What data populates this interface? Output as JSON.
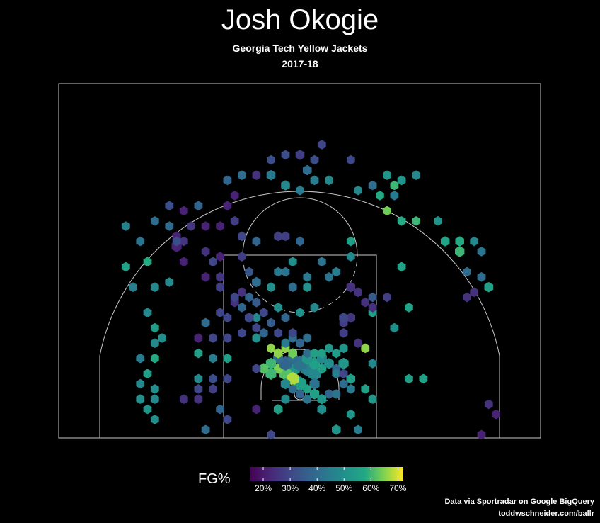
{
  "colors": {
    "background": "#000000",
    "court_lines": "#c8c8c8"
  },
  "chart_data": {
    "type": "hexbin",
    "title": "Josh Okogie",
    "subtitle": "Georgia Tech Yellow Jackets",
    "season": "2017-18",
    "legend": {
      "title": "FG%",
      "placement": "bottom-center",
      "range": [
        0.15,
        0.72
      ],
      "ticks": [
        "20%",
        "30%",
        "40%",
        "50%",
        "60%",
        "70%"
      ],
      "tick_values": [
        0.2,
        0.3,
        0.4,
        0.5,
        0.6,
        0.7
      ],
      "colormap": "viridis"
    },
    "shot_units": "feet from basket (x lateral, y toward baseline)",
    "hexes": [
      [
        0.0,
        1.4,
        0.55,
        0.28
      ],
      [
        -1.0,
        2.1,
        0.68,
        0.24
      ],
      [
        -1.0,
        3.5,
        0.52,
        0.32
      ],
      [
        1.0,
        3.5,
        0.46,
        0.3
      ],
      [
        -2.0,
        2.8,
        0.62,
        0.24
      ],
      [
        2.0,
        2.8,
        0.48,
        0.26
      ],
      [
        -3.0,
        3.5,
        0.65,
        0.15
      ],
      [
        3.0,
        3.5,
        0.55,
        0.15
      ],
      [
        -2.0,
        4.2,
        0.38,
        0.26
      ],
      [
        0.0,
        4.2,
        0.42,
        0.3
      ],
      [
        2.0,
        4.2,
        0.55,
        0.2
      ],
      [
        -3.0,
        4.9,
        0.4,
        0.18
      ],
      [
        -1.0,
        4.9,
        0.4,
        0.18
      ],
      [
        1.0,
        4.9,
        0.53,
        0.2
      ],
      [
        3.0,
        4.9,
        0.48,
        0.18
      ],
      [
        -1.0,
        2.1,
        0.68,
        0.24
      ],
      [
        -4.0,
        2.8,
        0.6,
        0.2
      ],
      [
        -2.0,
        1.4,
        0.48,
        0.16
      ],
      [
        2.0,
        1.4,
        0.42,
        0.18
      ],
      [
        -4.0,
        4.2,
        0.6,
        0.18
      ],
      [
        -5.0,
        3.5,
        0.62,
        0.16
      ],
      [
        4.0,
        4.2,
        0.5,
        0.16
      ],
      [
        5.0,
        3.5,
        0.38,
        0.12
      ],
      [
        6.0,
        4.2,
        0.52,
        0.18
      ],
      [
        5.0,
        2.8,
        0.45,
        0.12
      ],
      [
        6.0,
        2.8,
        0.3,
        0.12
      ],
      [
        7.0,
        2.1,
        0.55,
        0.14
      ],
      [
        0.0,
        0.0,
        0.38,
        0.12
      ],
      [
        2.0,
        0.0,
        0.55,
        0.16
      ],
      [
        1.0,
        -0.7,
        0.42,
        0.12
      ],
      [
        4.0,
        0.0,
        0.38,
        0.12
      ],
      [
        -1.0,
        0.7,
        0.4,
        0.12
      ],
      [
        -3.0,
        5.6,
        0.66,
        0.14
      ],
      [
        -1.0,
        5.6,
        0.64,
        0.14
      ],
      [
        1.0,
        5.6,
        0.4,
        0.12
      ],
      [
        3.0,
        5.6,
        0.55,
        0.12
      ],
      [
        5.0,
        5.6,
        0.54,
        0.12
      ],
      [
        -4.0,
        6.3,
        0.66,
        0.12
      ],
      [
        -2.0,
        6.3,
        0.66,
        0.12
      ],
      [
        4.0,
        6.3,
        0.52,
        0.12
      ],
      [
        -2.0,
        7.0,
        0.44,
        0.12
      ],
      [
        0.0,
        7.0,
        0.38,
        0.12
      ],
      [
        -1.0,
        7.7,
        0.4,
        0.12
      ],
      [
        1.0,
        7.7,
        0.4,
        0.12
      ],
      [
        -6.0,
        7.7,
        0.5,
        0.12
      ],
      [
        -5.0,
        8.4,
        0.38,
        0.12
      ],
      [
        -3.0,
        8.4,
        0.3,
        0.12
      ],
      [
        -4.0,
        9.8,
        0.36,
        0.12
      ],
      [
        -1.0,
        8.4,
        0.3,
        0.12
      ],
      [
        6.0,
        8.4,
        0.28,
        0.12
      ],
      [
        6.0,
        9.8,
        0.28,
        0.12
      ],
      [
        -2.0,
        10.5,
        0.38,
        0.12
      ],
      [
        -6.0,
        10.5,
        0.48,
        0.12
      ],
      [
        0.0,
        11.2,
        0.5,
        0.12
      ],
      [
        -3.0,
        11.9,
        0.5,
        0.12
      ],
      [
        2.0,
        11.9,
        0.48,
        0.12
      ],
      [
        -7.0,
        10.5,
        0.3,
        0.14
      ],
      [
        7.0,
        10.5,
        0.26,
        0.14
      ],
      [
        6.0,
        10.5,
        0.3,
        0.14
      ],
      [
        10.0,
        11.2,
        0.55,
        0.12
      ],
      [
        -11.0,
        11.2,
        0.3,
        0.12
      ],
      [
        -9.0,
        12.6,
        0.25,
        0.12
      ],
      [
        -8.0,
        14.0,
        0.25,
        0.12
      ],
      [
        -11.0,
        16.1,
        0.26,
        0.12
      ],
      [
        -12.0,
        7.7,
        0.3,
        0.12
      ],
      [
        -14.0,
        7.7,
        0.22,
        0.12
      ],
      [
        -13.0,
        9.8,
        0.4,
        0.12
      ],
      [
        -14.0,
        5.6,
        0.55,
        0.12
      ],
      [
        -12.0,
        4.9,
        0.45,
        0.12
      ],
      [
        -10.0,
        4.9,
        0.55,
        0.12
      ],
      [
        -12.0,
        2.1,
        0.32,
        0.12
      ],
      [
        -10.0,
        2.1,
        0.3,
        0.12
      ],
      [
        -14.0,
        0.7,
        0.3,
        0.12
      ],
      [
        -20.0,
        4.9,
        0.58,
        0.12
      ],
      [
        -21.0,
        2.8,
        0.55,
        0.12
      ],
      [
        -22.0,
        1.4,
        0.48,
        0.12
      ],
      [
        -20.0,
        0.7,
        0.5,
        0.12
      ],
      [
        -22.0,
        -0.7,
        0.5,
        0.12
      ],
      [
        -20.0,
        -0.7,
        0.48,
        0.12
      ],
      [
        -21.0,
        -2.1,
        0.52,
        0.12
      ],
      [
        -22.0,
        4.9,
        0.45,
        0.12
      ],
      [
        -20.0,
        9.1,
        0.54,
        0.12
      ],
      [
        -20.0,
        7.0,
        0.48,
        0.12
      ],
      [
        -21.0,
        11.2,
        0.48,
        0.12
      ],
      [
        -20.0,
        14.7,
        0.48,
        0.12
      ],
      [
        -24.0,
        17.5,
        0.56,
        0.12
      ],
      [
        -21.0,
        18.2,
        0.58,
        0.12
      ],
      [
        -22.0,
        21.0,
        0.42,
        0.12
      ],
      [
        -24.0,
        23.1,
        0.46,
        0.12
      ],
      [
        -20.0,
        23.8,
        0.4,
        0.12
      ],
      [
        -18.0,
        23.1,
        0.4,
        0.12
      ],
      [
        -18.0,
        25.9,
        0.32,
        0.12
      ],
      [
        -16.0,
        25.2,
        0.22,
        0.12
      ],
      [
        -14.0,
        25.9,
        0.38,
        0.12
      ],
      [
        -13.0,
        23.1,
        0.22,
        0.12
      ],
      [
        -17.0,
        21.7,
        0.22,
        0.12
      ],
      [
        -15.0,
        23.1,
        0.26,
        0.12
      ],
      [
        -16.0,
        21.0,
        0.26,
        0.12
      ],
      [
        -17.0,
        20.3,
        0.22,
        0.18
      ],
      [
        -13.0,
        19.6,
        0.25,
        0.12
      ],
      [
        -11.0,
        18.9,
        0.22,
        0.12
      ],
      [
        -11.0,
        23.1,
        0.22,
        0.12
      ],
      [
        -9.0,
        23.8,
        0.28,
        0.12
      ],
      [
        -10.0,
        25.9,
        0.22,
        0.12
      ],
      [
        -9.0,
        27.3,
        0.22,
        0.12
      ],
      [
        -10.0,
        29.4,
        0.38,
        0.12
      ],
      [
        -8.0,
        30.1,
        0.4,
        0.12
      ],
      [
        -6.0,
        30.1,
        0.25,
        0.12
      ],
      [
        -4.0,
        30.1,
        0.44,
        0.14
      ],
      [
        -2.0,
        28.7,
        0.48,
        0.14
      ],
      [
        0.0,
        28.0,
        0.44,
        0.12
      ],
      [
        1.0,
        30.8,
        0.4,
        0.14
      ],
      [
        2.0,
        29.4,
        0.45,
        0.12
      ],
      [
        4.0,
        29.4,
        0.48,
        0.12
      ],
      [
        -2.0,
        32.9,
        0.32,
        0.12
      ],
      [
        0.0,
        32.9,
        0.28,
        0.14
      ],
      [
        -4.0,
        32.2,
        0.32,
        0.12
      ],
      [
        2.0,
        32.2,
        0.32,
        0.12
      ],
      [
        3.0,
        34.3,
        0.3,
        0.12
      ],
      [
        7.0,
        32.2,
        0.3,
        0.12
      ],
      [
        10.0,
        28.7,
        0.4,
        0.12
      ],
      [
        8.0,
        28.0,
        0.48,
        0.12
      ],
      [
        11.0,
        27.3,
        0.58,
        0.12
      ],
      [
        13.0,
        28.7,
        0.6,
        0.12
      ],
      [
        12.0,
        30.1,
        0.52,
        0.12
      ],
      [
        14.0,
        29.4,
        0.52,
        0.12
      ],
      [
        16.0,
        30.1,
        0.48,
        0.12
      ],
      [
        13.0,
        27.3,
        0.44,
        0.12
      ],
      [
        12.0,
        25.2,
        0.64,
        0.12
      ],
      [
        14.0,
        23.8,
        0.58,
        0.12
      ],
      [
        16.0,
        23.8,
        0.6,
        0.12
      ],
      [
        19.0,
        23.8,
        0.52,
        0.12
      ],
      [
        20.0,
        21.0,
        0.56,
        0.14
      ],
      [
        22.0,
        21.0,
        0.58,
        0.14
      ],
      [
        24.0,
        21.0,
        0.48,
        0.12
      ],
      [
        22.0,
        19.6,
        0.6,
        0.16
      ],
      [
        25.0,
        19.6,
        0.42,
        0.12
      ],
      [
        23.0,
        16.8,
        0.4,
        0.12
      ],
      [
        25.0,
        16.1,
        0.4,
        0.12
      ],
      [
        26.0,
        14.7,
        0.55,
        0.14
      ],
      [
        24.0,
        14.0,
        0.25,
        0.12
      ],
      [
        23.0,
        13.3,
        0.25,
        0.12
      ],
      [
        14.0,
        17.5,
        0.56,
        0.12
      ],
      [
        12.0,
        13.3,
        0.28,
        0.12
      ],
      [
        15.0,
        11.9,
        0.56,
        0.12
      ],
      [
        13.0,
        9.1,
        0.5,
        0.12
      ],
      [
        10.0,
        13.3,
        0.35,
        0.12
      ],
      [
        8.0,
        14.0,
        0.25,
        0.12
      ],
      [
        9.0,
        12.6,
        0.25,
        0.12
      ],
      [
        10.0,
        11.9,
        0.25,
        0.12
      ],
      [
        7.0,
        14.7,
        0.25,
        0.14
      ],
      [
        7.0,
        18.9,
        0.48,
        0.12
      ],
      [
        5.0,
        16.8,
        0.45,
        0.12
      ],
      [
        3.0,
        18.2,
        0.42,
        0.12
      ],
      [
        4.0,
        16.1,
        0.42,
        0.12
      ],
      [
        1.0,
        16.1,
        0.44,
        0.12
      ],
      [
        -1.0,
        14.7,
        0.4,
        0.12
      ],
      [
        1.0,
        14.7,
        0.5,
        0.12
      ],
      [
        -4.0,
        14.7,
        0.5,
        0.12
      ],
      [
        -3.0,
        16.8,
        0.44,
        0.12
      ],
      [
        -1.0,
        18.2,
        0.5,
        0.12
      ],
      [
        -2.0,
        16.8,
        0.42,
        0.12
      ],
      [
        0.0,
        21.0,
        0.38,
        0.12
      ],
      [
        7.0,
        21.0,
        0.55,
        0.12
      ],
      [
        -6.0,
        21.0,
        0.38,
        0.12
      ],
      [
        -8.0,
        11.9,
        0.38,
        0.12
      ],
      [
        -7.0,
        13.3,
        0.38,
        0.12
      ],
      [
        -6.0,
        12.6,
        0.35,
        0.12
      ],
      [
        -5.0,
        11.2,
        0.3,
        0.12
      ],
      [
        -6.0,
        15.4,
        0.4,
        0.14
      ],
      [
        -11.0,
        14.7,
        0.28,
        0.12
      ],
      [
        -13.0,
        16.1,
        0.22,
        0.12
      ],
      [
        -12.0,
        18.2,
        0.3,
        0.12
      ],
      [
        -8.0,
        21.7,
        0.3,
        0.12
      ],
      [
        -8.0,
        18.9,
        0.28,
        0.12
      ],
      [
        -7.0,
        16.8,
        0.34,
        0.12
      ],
      [
        -3.0,
        21.7,
        0.28,
        0.12
      ],
      [
        -2.0,
        21.7,
        0.28,
        0.12
      ],
      [
        -16.0,
        18.2,
        0.22,
        0.12
      ],
      [
        -17.0,
        21.0,
        0.32,
        0.12
      ],
      [
        -23.0,
        14.7,
        0.45,
        0.12
      ],
      [
        -18.0,
        15.4,
        0.48,
        0.12
      ],
      [
        -9.0,
        13.3,
        0.3,
        0.12
      ],
      [
        -10.0,
        10.5,
        0.3,
        0.12
      ],
      [
        -10.0,
        7.7,
        0.3,
        0.12
      ],
      [
        -12.0,
        0.7,
        0.28,
        0.12
      ],
      [
        -6.0,
        3.5,
        0.3,
        0.12
      ],
      [
        -10.0,
        -3.5,
        0.3,
        0.12
      ],
      [
        -14.0,
        2.1,
        0.48,
        0.12
      ],
      [
        -3.0,
        -2.1,
        0.55,
        0.14
      ],
      [
        3.0,
        -2.1,
        0.5,
        0.14
      ],
      [
        3.0,
        -0.7,
        0.52,
        0.14
      ],
      [
        5.0,
        -4.9,
        0.52,
        0.14
      ],
      [
        7.0,
        -2.8,
        0.52,
        0.12
      ],
      [
        10.0,
        -0.7,
        0.52,
        0.12
      ],
      [
        6.0,
        1.4,
        0.4,
        0.12
      ],
      [
        5.0,
        0.0,
        0.42,
        0.12
      ],
      [
        7.0,
        0.7,
        0.44,
        0.12
      ],
      [
        9.0,
        0.7,
        0.55,
        0.12
      ],
      [
        9.0,
        6.3,
        0.66,
        0.12
      ],
      [
        15.0,
        2.1,
        0.55,
        0.12
      ],
      [
        17.0,
        2.1,
        0.56,
        0.12
      ],
      [
        26.0,
        -1.4,
        0.25,
        0.12
      ],
      [
        27.0,
        -2.8,
        0.22,
        0.12
      ],
      [
        25.0,
        -5.6,
        0.22,
        0.12
      ],
      [
        -4.0,
        -5.6,
        0.3,
        0.12
      ],
      [
        1.0,
        0.7,
        0.56,
        0.12
      ],
      [
        -2.0,
        -0.7,
        0.48,
        0.12
      ],
      [
        -16.0,
        -0.7,
        0.25,
        0.12
      ],
      [
        -14.0,
        -0.7,
        0.25,
        0.12
      ],
      [
        2.0,
        5.6,
        0.55,
        0.12
      ],
      [
        -8.0,
        8.4,
        0.3,
        0.12
      ],
      [
        -6.0,
        9.1,
        0.3,
        0.12
      ],
      [
        6.0,
        6.3,
        0.52,
        0.12
      ],
      [
        8.0,
        7.0,
        0.25,
        0.12
      ],
      [
        10.0,
        4.2,
        0.48,
        0.12
      ],
      [
        -20.0,
        -3.5,
        0.5,
        0.12
      ],
      [
        -19.0,
        7.7,
        0.5,
        0.12
      ],
      [
        -6.0,
        -2.1,
        0.22,
        0.12
      ],
      [
        -13.0,
        -4.9,
        0.4,
        0.12
      ],
      [
        -11.0,
        -2.1,
        0.38,
        0.12
      ],
      [
        8.0,
        -4.9,
        0.45,
        0.12
      ],
      [
        -3.0,
        21.7,
        0.28,
        0.12
      ]
    ]
  },
  "credits": {
    "line1": "Data via Sportradar on Google BigQuery",
    "line2": "toddwschneider.com/ballr"
  }
}
